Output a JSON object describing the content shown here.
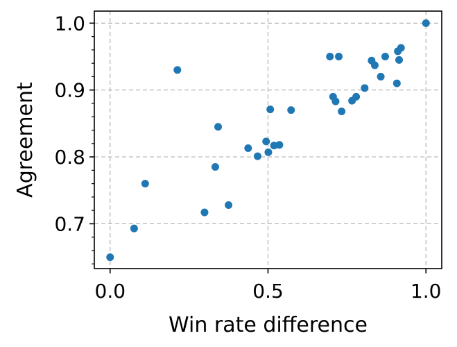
{
  "chart_data": {
    "type": "scatter",
    "title": "",
    "xlabel": "Win rate difference",
    "ylabel": "Agreement",
    "xlim": [
      -0.05,
      1.05
    ],
    "ylim": [
      0.633,
      1.018
    ],
    "grid": true,
    "marker_color": "#1f77b4",
    "xticks": [
      0.0,
      0.5,
      1.0
    ],
    "xtick_labels": [
      "0.0",
      "0.5",
      "1.0"
    ],
    "yticks": [
      0.7,
      0.8,
      0.9,
      1.0
    ],
    "ytick_labels": [
      "0.7",
      "0.8",
      "0.9",
      "1.0"
    ],
    "y_minor_ticks": [
      0.64,
      0.66,
      0.68,
      0.72,
      0.74,
      0.76,
      0.78,
      0.82,
      0.84,
      0.86,
      0.88,
      0.92,
      0.94,
      0.96,
      0.98
    ],
    "points": [
      {
        "x": 0.0,
        "y": 0.65
      },
      {
        "x": 0.076,
        "y": 0.693
      },
      {
        "x": 0.111,
        "y": 0.76
      },
      {
        "x": 0.213,
        "y": 0.93
      },
      {
        "x": 0.299,
        "y": 0.717
      },
      {
        "x": 0.333,
        "y": 0.785
      },
      {
        "x": 0.342,
        "y": 0.845
      },
      {
        "x": 0.375,
        "y": 0.728
      },
      {
        "x": 0.437,
        "y": 0.813
      },
      {
        "x": 0.467,
        "y": 0.801
      },
      {
        "x": 0.494,
        "y": 0.823
      },
      {
        "x": 0.501,
        "y": 0.807
      },
      {
        "x": 0.507,
        "y": 0.871
      },
      {
        "x": 0.519,
        "y": 0.817
      },
      {
        "x": 0.536,
        "y": 0.818
      },
      {
        "x": 0.573,
        "y": 0.87
      },
      {
        "x": 0.696,
        "y": 0.95
      },
      {
        "x": 0.706,
        "y": 0.89
      },
      {
        "x": 0.714,
        "y": 0.883
      },
      {
        "x": 0.724,
        "y": 0.95
      },
      {
        "x": 0.733,
        "y": 0.868
      },
      {
        "x": 0.766,
        "y": 0.884
      },
      {
        "x": 0.779,
        "y": 0.89
      },
      {
        "x": 0.806,
        "y": 0.903
      },
      {
        "x": 0.828,
        "y": 0.944
      },
      {
        "x": 0.838,
        "y": 0.937
      },
      {
        "x": 0.857,
        "y": 0.92
      },
      {
        "x": 0.871,
        "y": 0.95
      },
      {
        "x": 0.908,
        "y": 0.91
      },
      {
        "x": 0.911,
        "y": 0.958
      },
      {
        "x": 0.915,
        "y": 0.945
      },
      {
        "x": 0.921,
        "y": 0.963
      },
      {
        "x": 1.0,
        "y": 1.0
      }
    ]
  }
}
